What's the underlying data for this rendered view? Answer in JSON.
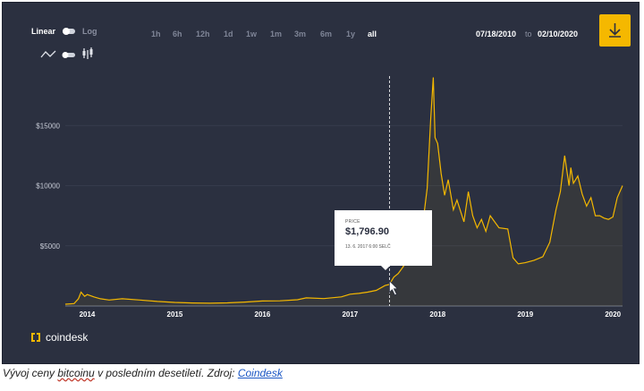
{
  "controls": {
    "scale_linear": "Linear",
    "scale_log": "Log",
    "ranges": [
      "1h",
      "6h",
      "12h",
      "1d",
      "1w",
      "1m",
      "3m",
      "6m",
      "1y",
      "all"
    ],
    "active_range": "all",
    "date_from": "07/18/2010",
    "date_sep": "to",
    "date_to": "02/10/2020"
  },
  "tooltip": {
    "label": "PRICE",
    "value": "$1,796.90",
    "date": "13. 6. 2017 6:00 SELČ"
  },
  "brand": {
    "name": "coindesk"
  },
  "caption": {
    "pre": "Vývoj ceny ",
    "word": "bitcoinu",
    "mid": " v posledním desetiletí. Zdroj: ",
    "link": "Coindesk"
  },
  "colors": {
    "background": "#2b3040",
    "line": "#f5b800",
    "accent": "#f5b800",
    "grid": "#3a3f51"
  },
  "icons": [
    "line-chart-icon",
    "toggle-icon",
    "candlestick-icon",
    "download-icon",
    "coindesk-logo-icon"
  ],
  "chart_data": {
    "type": "line",
    "ylim": [
      0,
      20000
    ],
    "yticks": [
      5000,
      10000,
      15000
    ],
    "ytick_labels": [
      "$5000",
      "$10000",
      "$15000"
    ],
    "xticks": [
      "2014",
      "2015",
      "2016",
      "2017",
      "2018",
      "2019",
      "2020"
    ],
    "x_start": 2013.75,
    "x_end": 2020.11,
    "marker_x": 2017.45,
    "series": [
      {
        "x": [
          2013.75,
          2013.85,
          2013.9,
          2013.93,
          2013.97,
          2014.0,
          2014.08,
          2014.15,
          2014.25,
          2014.4,
          2014.6,
          2014.8,
          2015.0,
          2015.2,
          2015.4,
          2015.6,
          2015.8,
          2016.0,
          2016.2,
          2016.4,
          2016.5,
          2016.7,
          2016.9,
          2017.0,
          2017.1,
          2017.2,
          2017.3,
          2017.4,
          2017.45,
          2017.5,
          2017.55,
          2017.6,
          2017.68,
          2017.75,
          2017.82,
          2017.88,
          2017.92,
          2017.95,
          2017.97,
          2018.0,
          2018.04,
          2018.08,
          2018.12,
          2018.18,
          2018.22,
          2018.3,
          2018.35,
          2018.4,
          2018.45,
          2018.5,
          2018.55,
          2018.6,
          2018.7,
          2018.8,
          2018.86,
          2018.92,
          2019.0,
          2019.1,
          2019.2,
          2019.28,
          2019.35,
          2019.4,
          2019.45,
          2019.5,
          2019.52,
          2019.55,
          2019.6,
          2019.65,
          2019.7,
          2019.75,
          2019.8,
          2019.85,
          2019.9,
          2019.95,
          2020.0,
          2020.05,
          2020.11
        ],
        "y": [
          150,
          200,
          600,
          1150,
          800,
          950,
          750,
          600,
          500,
          600,
          500,
          380,
          300,
          250,
          230,
          260,
          330,
          420,
          430,
          520,
          680,
          620,
          760,
          980,
          1050,
          1150,
          1300,
          1700,
          1797,
          2400,
          2700,
          3200,
          4100,
          4800,
          6200,
          9800,
          15500,
          19000,
          14000,
          13500,
          11000,
          9200,
          10500,
          8000,
          8800,
          7000,
          9500,
          7500,
          6500,
          7200,
          6200,
          7500,
          6500,
          6400,
          4000,
          3500,
          3600,
          3800,
          4100,
          5300,
          8000,
          9500,
          12500,
          10000,
          11500,
          10200,
          10800,
          9300,
          8300,
          9000,
          7500,
          7500,
          7300,
          7200,
          7400,
          9000,
          10000
        ]
      }
    ]
  }
}
